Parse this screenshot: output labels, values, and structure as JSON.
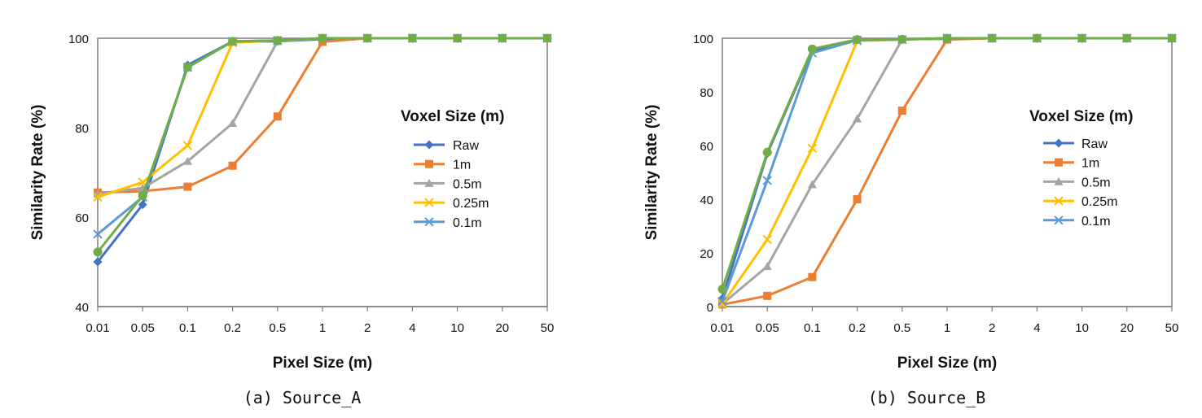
{
  "chart_data": [
    {
      "type": "line",
      "caption": "(a) Source_A",
      "xlabel": "Pixel Size (m)",
      "ylabel": "Similarity Rate (%)",
      "categories": [
        "0.01",
        "0.05",
        "0.1",
        "0.2",
        "0.5",
        "1",
        "2",
        "4",
        "10",
        "20",
        "50"
      ],
      "ylim": [
        40,
        100
      ],
      "yticks": [
        "40",
        "60",
        "80",
        "100"
      ],
      "legend_title": "Voxel Size (m)",
      "legend_position": "right",
      "grid": false,
      "series": [
        {
          "name": "Raw",
          "color": "#4472C4",
          "marker": "diamond",
          "values": [
            50,
            62.8,
            94,
            99.3,
            99.3,
            99.8,
            100,
            100,
            100,
            100,
            100
          ]
        },
        {
          "name": "1m",
          "color": "#ED7D31",
          "marker": "square",
          "values": [
            65.5,
            65.8,
            66.8,
            71.5,
            82.5,
            99.2,
            100,
            100,
            100,
            100,
            100
          ]
        },
        {
          "name": "0.5m",
          "color": "#A5A5A5",
          "marker": "triangle",
          "values": [
            65.2,
            66.5,
            72.5,
            81,
            99.3,
            100,
            100,
            100,
            100,
            100,
            100
          ]
        },
        {
          "name": "0.25m",
          "color": "#FFC000",
          "marker": "x",
          "values": [
            64.5,
            67.8,
            76,
            99,
            99.5,
            100,
            100,
            100,
            100,
            100,
            100
          ]
        },
        {
          "name": "0.1m",
          "color": "#5B9BD5",
          "marker": "x",
          "values": [
            56.2,
            64.5,
            93.5,
            99.3,
            99.5,
            100,
            100,
            100,
            100,
            100,
            100
          ]
        },
        {
          "color": "#70AD47",
          "marker": "circle",
          "values": [
            52.2,
            64.8,
            93.5,
            99.3,
            99.5,
            100,
            100,
            100,
            100,
            100,
            100
          ]
        }
      ]
    },
    {
      "type": "line",
      "caption": "(b) Source_B",
      "xlabel": "Pixel Size (m)",
      "ylabel": "Similarity Rate (%)",
      "categories": [
        "0.01",
        "0.05",
        "0.1",
        "0.2",
        "0.5",
        "1",
        "2",
        "4",
        "10",
        "20",
        "50"
      ],
      "ylim": [
        0,
        100
      ],
      "yticks": [
        "0",
        "20",
        "40",
        "60",
        "80",
        "100"
      ],
      "legend_title": "Voxel Size (m)",
      "legend_position": "right",
      "grid": false,
      "series": [
        {
          "name": "Raw",
          "color": "#4472C4",
          "marker": "diamond",
          "values": [
            3,
            57,
            95.5,
            99.5,
            99.6,
            99.8,
            100,
            100,
            100,
            100,
            100
          ]
        },
        {
          "name": "1m",
          "color": "#ED7D31",
          "marker": "square",
          "values": [
            0.8,
            4,
            11,
            40,
            73,
            99.5,
            100,
            100,
            100,
            100,
            100
          ]
        },
        {
          "name": "0.5m",
          "color": "#A5A5A5",
          "marker": "triangle",
          "values": [
            1,
            15,
            45.5,
            70,
            99.5,
            100,
            100,
            100,
            100,
            100,
            100
          ]
        },
        {
          "name": "0.25m",
          "color": "#FFC000",
          "marker": "x",
          "values": [
            1,
            25,
            59,
            99,
            99.5,
            100,
            100,
            100,
            100,
            100,
            100
          ]
        },
        {
          "name": "0.1m",
          "color": "#5B9BD5",
          "marker": "x",
          "values": [
            2,
            47,
            94.5,
            99.3,
            99.5,
            100,
            100,
            100,
            100,
            100,
            100
          ]
        },
        {
          "color": "#70AD47",
          "marker": "circle",
          "values": [
            6.5,
            57.5,
            96,
            99.5,
            99.6,
            100,
            100,
            100,
            100,
            100,
            100
          ]
        }
      ]
    }
  ]
}
